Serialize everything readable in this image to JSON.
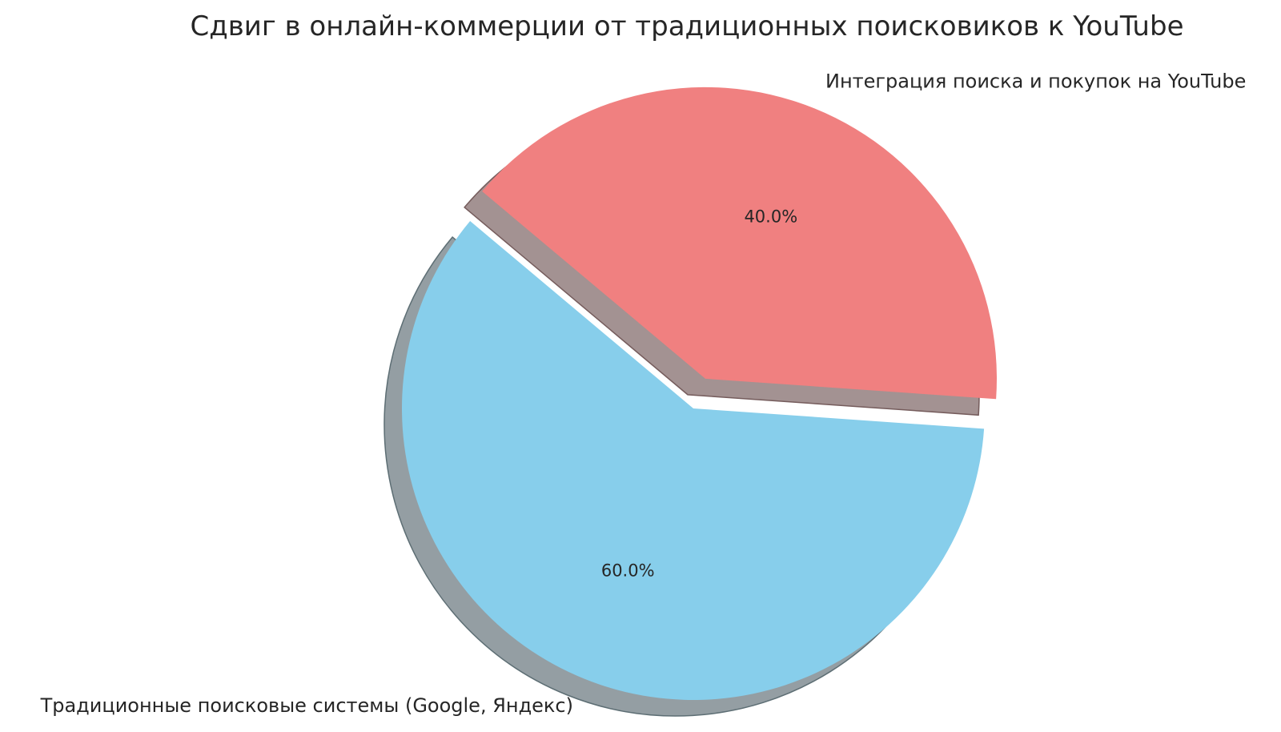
{
  "chart_data": {
    "type": "pie",
    "title": "Сдвиг в онлайн-коммерции от традиционных поисковиков к YouTube",
    "slices": [
      {
        "label": "Интеграция поиска и покупок на YouTube",
        "value": 40.0,
        "pct_label": "40.0%",
        "color": "#F08080",
        "explode": 0.11,
        "shadow_fill": "#a39292",
        "shadow_stroke": "#755c5c"
      },
      {
        "label": "Традиционные поисковые системы (Google, Яндекс)",
        "value": 60.0,
        "pct_label": "60.0%",
        "color": "#87CEEB",
        "explode": 0.0,
        "shadow_fill": "#949ea3",
        "shadow_stroke": "#5d6e74"
      }
    ],
    "start_angle_deg": -4,
    "counterclockwise": true,
    "shadow": true,
    "label_distance": 1.1,
    "pct_distance": 0.6,
    "legend": "none",
    "grid": "off",
    "background": "#ffffff",
    "text_color": "#262626"
  }
}
